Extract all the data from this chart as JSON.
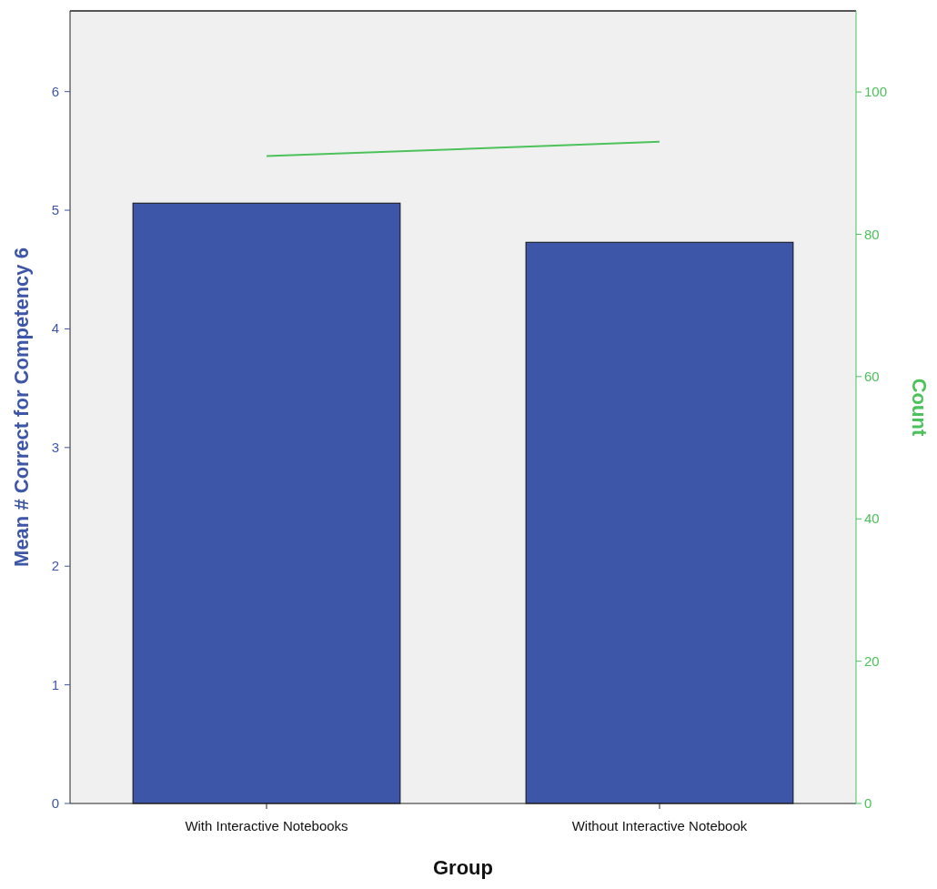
{
  "chart_data": {
    "type": "bar",
    "categories": [
      "With Interactive Notebooks",
      "Without Interactive Notebook"
    ],
    "series": [
      {
        "color": "#3d56a8",
        "values": [
          5.06,
          4.73
        ]
      },
      {
        "type": "line",
        "axis": "y2",
        "color": "#4bc25a",
        "values": [
          91,
          93
        ]
      }
    ],
    "xlabel": "Group",
    "ylabel": "Mean # Correct for Competency 6",
    "y2label": "Count",
    "ylim": [
      0,
      6.68
    ],
    "yticks": [
      0,
      1,
      2,
      3,
      4,
      5,
      6
    ],
    "y2lim": [
      0,
      111.4
    ],
    "y2ticks": [
      0,
      20,
      40,
      60,
      80,
      100
    ],
    "grid": false,
    "marker": "none"
  }
}
